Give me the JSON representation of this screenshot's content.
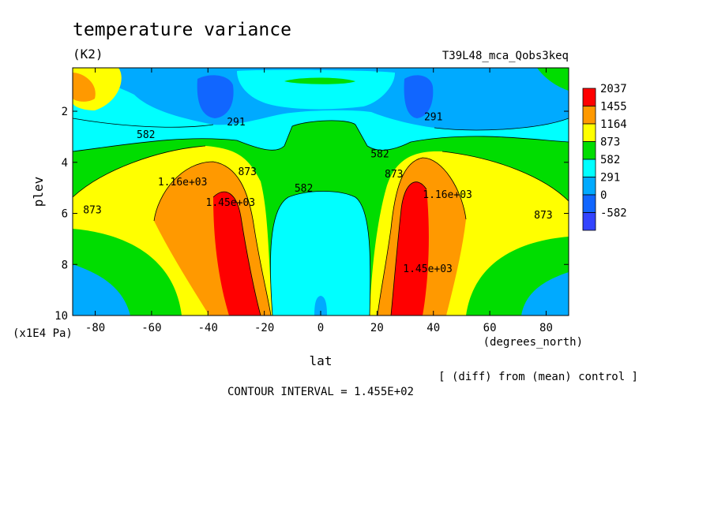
{
  "chart_data": {
    "type": "heatmap",
    "plot_kind": "filled contour (latitude-pressure cross section)",
    "title": "temperature variance",
    "subtitle": "(K2)",
    "experiment": "T39L48_mca_Qobs3keq",
    "xlabel": "lat",
    "xunits": "(degrees_north)",
    "ylabel": "plev",
    "yunits": "(x1E4 Pa)",
    "xlim": [
      -88,
      88
    ],
    "ylim": [
      10,
      0.3
    ],
    "y_reversed": true,
    "xticks": [
      -80,
      -60,
      -40,
      -20,
      0,
      20,
      40,
      60,
      80
    ],
    "xtick_labels": [
      "-80",
      "-60",
      "-40",
      "-20",
      "0",
      "20",
      "40",
      "60",
      "80"
    ],
    "yticks": [
      2,
      4,
      6,
      8,
      10
    ],
    "ytick_labels": [
      "2",
      "4",
      "6",
      "8",
      "10"
    ],
    "colorbar": {
      "labels": [
        "2037",
        "1455",
        "1164",
        "873",
        "582",
        "291",
        "0",
        "-582"
      ],
      "colors": [
        "#ff0000",
        "#ff9900",
        "#ffff00",
        "#00dd00",
        "#00ffff",
        "#00aaff",
        "#1166ff",
        "#3344ff"
      ]
    },
    "contour_labels": [
      {
        "text": "582",
        "lat": -62,
        "plev": 3.05
      },
      {
        "text": "291",
        "lat": -30,
        "plev": 2.55
      },
      {
        "text": "291",
        "lat": 40,
        "plev": 2.35
      },
      {
        "text": "582",
        "lat": 21,
        "plev": 3.8
      },
      {
        "text": "873",
        "lat": -26,
        "plev": 4.5
      },
      {
        "text": "873",
        "lat": 26,
        "plev": 4.6
      },
      {
        "text": "582",
        "lat": -6,
        "plev": 5.15
      },
      {
        "text": "1.16e+03",
        "lat": -49,
        "plev": 4.9
      },
      {
        "text": "1.45e+03",
        "lat": -32,
        "plev": 5.7
      },
      {
        "text": "1.16e+03",
        "lat": 45,
        "plev": 5.4
      },
      {
        "text": "1.45e+03",
        "lat": 38,
        "plev": 8.3
      },
      {
        "text": "873",
        "lat": -81,
        "plev": 6.0
      },
      {
        "text": "873",
        "lat": 79,
        "plev": 6.2
      }
    ],
    "contour_interval_text": "CONTOUR INTERVAL = 1.455E+02",
    "note": "[ (diff) from (mean) control ]",
    "field_description": {
      "max_regions": [
        {
          "lat_range": [
            -42,
            -28
          ],
          "plev_range": [
            5,
            10
          ],
          "level": "2037"
        },
        {
          "lat_range": [
            31,
            40
          ],
          "plev_range": [
            4.5,
            10
          ],
          "level": "2037"
        }
      ],
      "min_regions": [
        {
          "lat_range": [
            -47,
            -33
          ],
          "plev_range": [
            0.6,
            2.3
          ],
          "level": "-582"
        },
        {
          "lat_range": [
            33,
            40
          ],
          "plev_range": [
            0.6,
            2.3
          ],
          "level": "-582"
        }
      ]
    }
  }
}
